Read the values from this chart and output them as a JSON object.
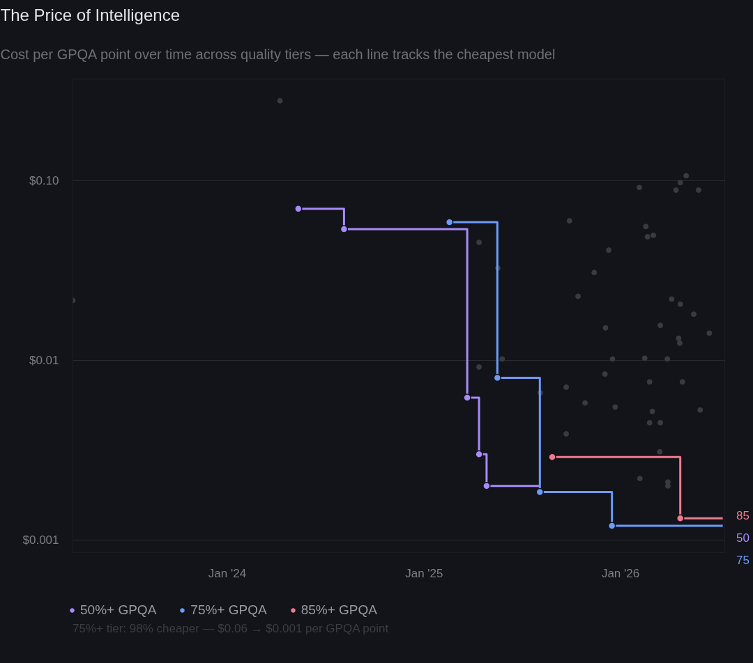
{
  "chart_data": {
    "type": "step",
    "title": "The Price of Intelligence",
    "subtitle": "Cost per GPQA point over time across quality tiers — each line tracks the cheapest model",
    "log": "y",
    "grid": "y",
    "legend": "bottom",
    "marker": "circle",
    "line_style": "solid",
    "xlim": [
      "2023-03-20",
      "2026-07-15"
    ],
    "ylim": [
      0.00085,
      0.37
    ],
    "xticks": [
      {
        "value": "2024-01-01",
        "label": "Jan '24"
      },
      {
        "value": "2025-01-01",
        "label": "Jan '25"
      },
      {
        "value": "2026-01-01",
        "label": "Jan '26"
      }
    ],
    "yticks": [
      {
        "value": 0.001,
        "label": "$0.001"
      },
      {
        "value": 0.01,
        "label": "$0.01"
      },
      {
        "value": 0.1,
        "label": "$0.10"
      }
    ],
    "series": [
      {
        "type": "scatter",
        "color": "#3a3b40",
        "x": [
          "2023-03-20",
          "2024-04-08",
          "2025-09-28",
          "2025-04-13",
          "2025-12-10",
          "2026-02-17",
          "2026-02-20",
          "2026-03-03",
          "2025-11-13",
          "2025-05-18",
          "2025-10-14",
          "2026-04-06",
          "2026-04-22",
          "2026-05-17",
          "2025-12-04",
          "2026-03-16",
          "2026-04-19",
          "2026-04-21",
          "2026-06-15",
          "2025-05-26",
          "2025-12-17",
          "2026-02-15",
          "2026-03-29",
          "2025-04-13",
          "2025-12-03",
          "2025-09-22",
          "2025-08-05",
          "2026-02-24",
          "2026-04-26",
          "2025-10-27",
          "2025-12-22",
          "2026-03-01",
          "2026-05-29",
          "2026-02-24",
          "2026-03-16",
          "2025-09-22",
          "2026-03-15",
          "2026-02-06",
          "2026-03-30",
          "2026-03-30",
          "2026-02-05",
          "2026-04-14",
          "2026-04-22",
          "2026-05-03",
          "2026-05-26"
        ],
        "values": [
          0.0216,
          0.28,
          0.06,
          0.0455,
          0.0412,
          0.0558,
          0.0489,
          0.0498,
          0.0309,
          0.0327,
          0.0228,
          0.022,
          0.0206,
          0.0181,
          0.0152,
          0.0157,
          0.0133,
          0.0125,
          0.0142,
          0.0102,
          0.0102,
          0.0103,
          0.0102,
          0.0092,
          0.0084,
          0.0071,
          0.0066,
          0.0076,
          0.0076,
          0.0058,
          0.0055,
          0.0052,
          0.0053,
          0.0045,
          0.0045,
          0.0039,
          0.0031,
          0.0022,
          0.0021,
          0.002,
          0.092,
          0.089,
          0.098,
          0.107,
          0.089
        ]
      },
      {
        "name": "50%+ GPQA",
        "color": "#a78bfa",
        "x": [
          "2024-05-12",
          "2024-08-05",
          "2025-03-22",
          "2025-04-13",
          "2025-04-27",
          "2025-08-04"
        ],
        "values": [
          0.07,
          0.054,
          0.0062,
          0.003,
          0.002,
          0.002
        ]
      },
      {
        "name": "75%+ GPQA",
        "color": "#6b9cfa",
        "x": [
          "2025-02-17",
          "2025-05-17",
          "2025-08-04",
          "2025-12-16",
          "2026-07-10"
        ],
        "values": [
          0.059,
          0.008,
          0.00185,
          0.0012,
          0.0012
        ]
      },
      {
        "name": "85%+ GPQA",
        "color": "#f07a8f",
        "x": [
          "2025-08-27",
          "2026-04-22",
          "2026-07-10"
        ],
        "values": [
          0.0029,
          0.00132,
          0.00132
        ]
      }
    ],
    "annotations": [
      "85",
      "50",
      "75",
      "75%+ tier: 98% cheaper — $0.06 → $0.001 per GPQA point"
    ]
  }
}
